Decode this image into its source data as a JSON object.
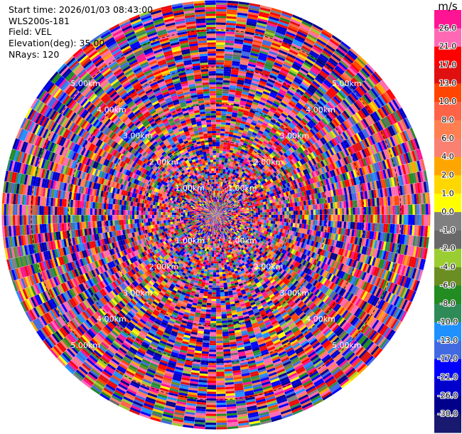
{
  "header": {
    "start_time": "Start time: 2026/01/03 08:43:00",
    "site": "WLS200s-181",
    "field": "Field: VEL",
    "elevation": "Elevation(deg): 35.00",
    "nrays": "NRays: 120"
  },
  "colorbar": {
    "unit": "m/s",
    "ticks": [
      "26.0",
      "21.0",
      "17.0",
      "13.0",
      "10.0",
      "8.0",
      "6.0",
      "4.0",
      "2.0",
      "1.0",
      "0.0",
      "-1.0",
      "-2.0",
      "-4.0",
      "-6.0",
      "-8.0",
      "-10.0",
      "-13.0",
      "-17.0",
      "-21.0",
      "-26.0",
      "-30.0"
    ],
    "colors": [
      "#ff1493",
      "#ff69b4",
      "#ff0000",
      "#e01010",
      "#ff4500",
      "#ff6347",
      "#ff7f50",
      "#fa8072",
      "#ffa500",
      "#ffd700",
      "#ffff00",
      "#808080",
      "#696969",
      "#9acd32",
      "#6b8e23",
      "#228b22",
      "#2e8b57",
      "#1e90ff",
      "#4169e1",
      "#0000ff",
      "#0000cd",
      "#00008b",
      "#191970"
    ]
  },
  "chart_data": {
    "type": "heatmap",
    "projection": "polar-ppi",
    "field": "VEL",
    "unit": "m/s",
    "nrays": 120,
    "range_rings_km": [
      1.0,
      2.0,
      3.0,
      4.0,
      5.0
    ],
    "ring_labels": [
      "1.00km",
      "2.00km",
      "3.00km",
      "4.00km",
      "5.00km"
    ],
    "max_range_km": 5.8,
    "gate_spacing_km": 0.06,
    "value_min": -30.0,
    "value_max": 26.0,
    "pattern": "random noise velocities across all gates",
    "label_angles_deg": [
      -135,
      -45,
      45,
      135
    ]
  }
}
